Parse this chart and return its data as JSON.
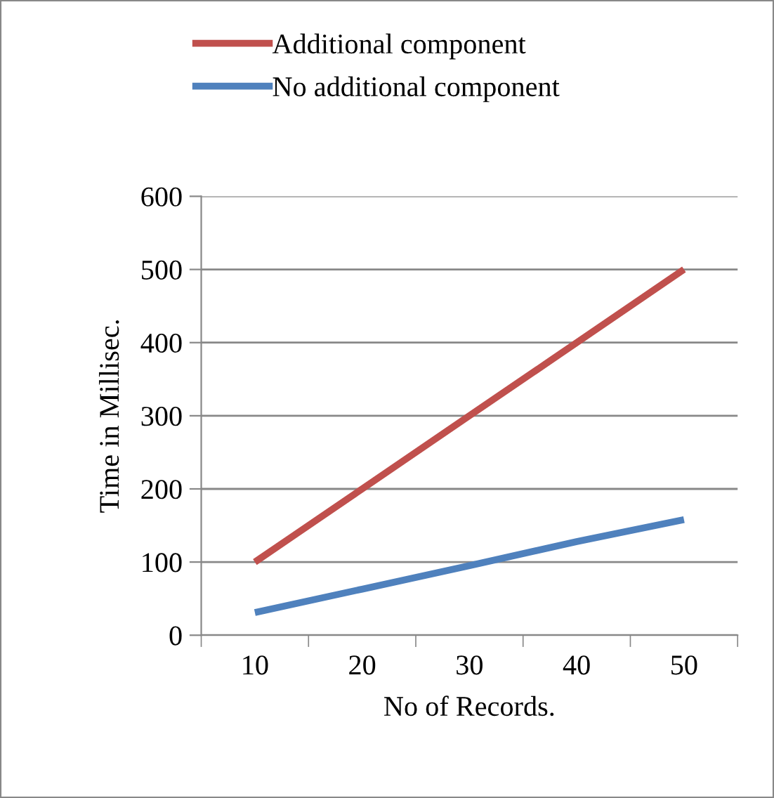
{
  "chart_data": {
    "type": "line",
    "xlabel": "No of Records.",
    "ylabel": "Time in Millisec.",
    "categories": [
      "10",
      "20",
      "30",
      "40",
      "50"
    ],
    "series": [
      {
        "name": "Additional component",
        "color": "#c0504d",
        "values": [
          100,
          200,
          300,
          400,
          500
        ]
      },
      {
        "name": "No additional component",
        "color": "#4f81bd",
        "values": [
          31,
          63,
          95,
          128,
          158
        ]
      }
    ],
    "ylim": [
      0,
      600
    ],
    "yticks": [
      0,
      100,
      200,
      300,
      400,
      500,
      600
    ],
    "grid": "y",
    "legend": "top",
    "marker": "none",
    "line_style": "solid"
  }
}
